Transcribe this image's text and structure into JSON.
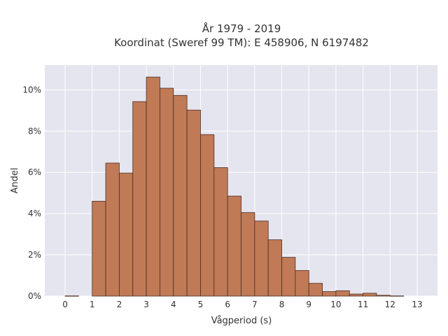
{
  "chart_data": {
    "type": "bar",
    "title_lines": [
      "År 1979 - 2019",
      "Koordinat (Sweref 99 TM): E 458906, N 6197482"
    ],
    "xlabel": "Vågperiod (s)",
    "ylabel": "Andel",
    "x_ticks": [
      "0",
      "1",
      "2",
      "3",
      "4",
      "5",
      "6",
      "7",
      "8",
      "9",
      "10",
      "11",
      "12",
      "13"
    ],
    "y_ticks": [
      "0%",
      "2%",
      "4%",
      "6%",
      "8%",
      "10%"
    ],
    "xlim": [
      -0.75,
      13.75
    ],
    "ylim": [
      0,
      11.2
    ],
    "bin_width": 0.5,
    "bins": [
      {
        "start": 0.0,
        "value": 0.01
      },
      {
        "start": 1.0,
        "value": 4.6
      },
      {
        "start": 1.5,
        "value": 6.45
      },
      {
        "start": 2.0,
        "value": 5.97
      },
      {
        "start": 2.5,
        "value": 9.43
      },
      {
        "start": 3.0,
        "value": 10.62
      },
      {
        "start": 3.5,
        "value": 10.08
      },
      {
        "start": 4.0,
        "value": 9.73
      },
      {
        "start": 4.5,
        "value": 9.02
      },
      {
        "start": 5.0,
        "value": 7.83
      },
      {
        "start": 5.5,
        "value": 6.23
      },
      {
        "start": 6.0,
        "value": 4.85
      },
      {
        "start": 6.5,
        "value": 4.05
      },
      {
        "start": 7.0,
        "value": 3.64
      },
      {
        "start": 7.5,
        "value": 2.73
      },
      {
        "start": 8.0,
        "value": 1.88
      },
      {
        "start": 8.5,
        "value": 1.24
      },
      {
        "start": 9.0,
        "value": 0.62
      },
      {
        "start": 9.5,
        "value": 0.22
      },
      {
        "start": 10.0,
        "value": 0.26
      },
      {
        "start": 10.5,
        "value": 0.1
      },
      {
        "start": 11.0,
        "value": 0.14
      },
      {
        "start": 11.5,
        "value": 0.04
      },
      {
        "start": 12.0,
        "value": 0.01
      }
    ],
    "grid": true,
    "colors": {
      "bar_fill": "#c07a56",
      "bar_stroke": "#4a2e22",
      "plot_bg": "#e5e5ef",
      "grid": "#ffffff"
    }
  }
}
